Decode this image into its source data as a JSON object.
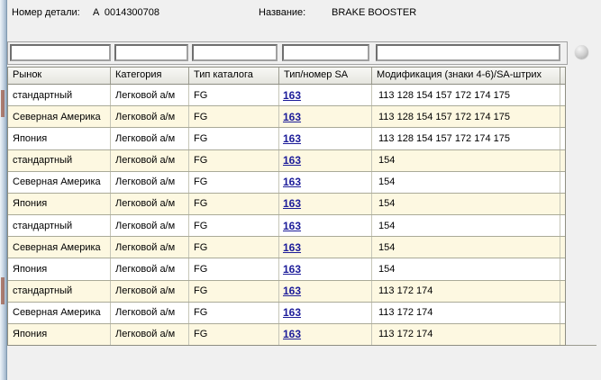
{
  "info_bar": {
    "part_number_label": "Номер детали:",
    "part_number_value": "A  0014300708",
    "name_label": "Название:",
    "name_value": "BRAKE BOOSTER"
  },
  "filter_bar": {
    "inputs": [
      {
        "column": "market",
        "value": ""
      },
      {
        "column": "category",
        "value": ""
      },
      {
        "column": "catalog_type",
        "value": ""
      },
      {
        "column": "sa_number",
        "value": ""
      },
      {
        "column": "modification",
        "value": ""
      }
    ]
  },
  "table": {
    "columns": [
      {
        "key": "market",
        "label": "Рынок"
      },
      {
        "key": "category",
        "label": "Категория"
      },
      {
        "key": "catalog_type",
        "label": "Тип каталога"
      },
      {
        "key": "sa_number",
        "label": "Тип/номер SA"
      },
      {
        "key": "modification",
        "label": "Модификация (знаки 4-6)/SA-штрих"
      }
    ],
    "rows": [
      {
        "market": "стандартный",
        "category": "Легковой а/м",
        "catalog_type": "FG",
        "sa_number": "163",
        "modification": "113 128 154 157 172 174 175",
        "shade": "white"
      },
      {
        "market": "Северная Америка",
        "category": "Легковой а/м",
        "catalog_type": "FG",
        "sa_number": "163",
        "modification": "113 128 154 157 172 174 175",
        "shade": "yellow"
      },
      {
        "market": "Япония",
        "category": "Легковой а/м",
        "catalog_type": "FG",
        "sa_number": "163",
        "modification": "113 128 154 157 172 174 175",
        "shade": "white"
      },
      {
        "market": "стандартный",
        "category": "Легковой а/м",
        "catalog_type": "FG",
        "sa_number": "163",
        "modification": "154",
        "shade": "yellow"
      },
      {
        "market": "Северная Америка",
        "category": "Легковой а/м",
        "catalog_type": "FG",
        "sa_number": "163",
        "modification": "154",
        "shade": "white"
      },
      {
        "market": "Япония",
        "category": "Легковой а/м",
        "catalog_type": "FG",
        "sa_number": "163",
        "modification": "154",
        "shade": "yellow"
      },
      {
        "market": "стандартный",
        "category": "Легковой а/м",
        "catalog_type": "FG",
        "sa_number": "163",
        "modification": "154",
        "shade": "white"
      },
      {
        "market": "Северная Америка",
        "category": "Легковой а/м",
        "catalog_type": "FG",
        "sa_number": "163",
        "modification": "154",
        "shade": "yellow"
      },
      {
        "market": "Япония",
        "category": "Легковой а/м",
        "catalog_type": "FG",
        "sa_number": "163",
        "modification": "154",
        "shade": "white"
      },
      {
        "market": "стандартный",
        "category": "Легковой а/м",
        "catalog_type": "FG",
        "sa_number": "163",
        "modification": "113 172 174",
        "shade": "yellow"
      },
      {
        "market": "Северная Америка",
        "category": "Легковой а/м",
        "catalog_type": "FG",
        "sa_number": "163",
        "modification": "113 172 174",
        "shade": "white"
      },
      {
        "market": "Япония",
        "category": "Легковой а/м",
        "catalog_type": "FG",
        "sa_number": "163",
        "modification": "113 172 174",
        "shade": "yellow"
      }
    ]
  },
  "colors": {
    "background": "#f0f0f0",
    "row_white": "#ffffff",
    "row_yellow": "#fdf8e1",
    "grid_border": "#8e8e82",
    "link": "#1c1c99"
  }
}
